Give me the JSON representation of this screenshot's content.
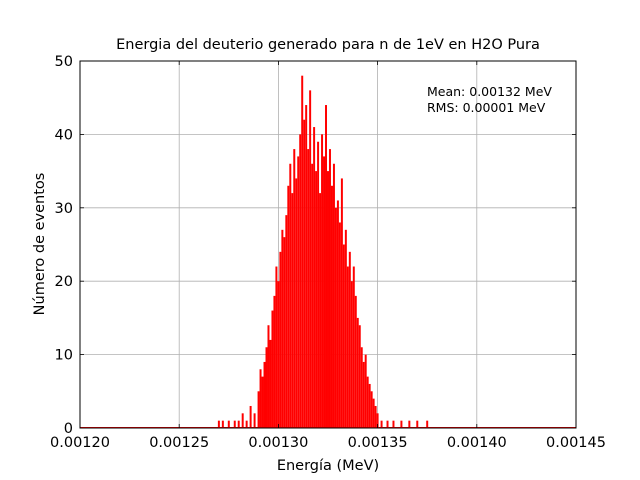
{
  "chart_data": {
    "type": "bar",
    "title": "Energia del deuterio generado para n de 1eV en H2O Pura",
    "xlabel": "Energía (MeV)",
    "ylabel": "Número de eventos",
    "xlim": [
      0.0012,
      0.00145
    ],
    "ylim": [
      0,
      50
    ],
    "grid": true,
    "color": "#ff0000",
    "xticks": [
      "0.00120",
      "0.00125",
      "0.00130",
      "0.00135",
      "0.00140",
      "0.00145"
    ],
    "yticks": [
      "0",
      "10",
      "20",
      "30",
      "40",
      "50"
    ],
    "stats": {
      "mean_label": "Mean: 0.00132 MeV",
      "rms_label": "RMS: 0.00001 MeV"
    },
    "bin_centers_mev": [
      0.00127,
      0.001272,
      0.001275,
      0.001278,
      0.00128,
      0.001282,
      0.001284,
      0.001286,
      0.001288,
      0.00129,
      0.001291,
      0.001292,
      0.001293,
      0.001294,
      0.001295,
      0.001296,
      0.001297,
      0.001298,
      0.001299,
      0.0013,
      0.001301,
      0.001302,
      0.001303,
      0.001304,
      0.001305,
      0.001306,
      0.001307,
      0.001308,
      0.001309,
      0.00131,
      0.001311,
      0.001312,
      0.001313,
      0.001314,
      0.001315,
      0.001316,
      0.001317,
      0.001318,
      0.001319,
      0.00132,
      0.001321,
      0.001322,
      0.001323,
      0.001324,
      0.001325,
      0.001326,
      0.001327,
      0.001328,
      0.001329,
      0.00133,
      0.001331,
      0.001332,
      0.001333,
      0.001334,
      0.001335,
      0.001336,
      0.001337,
      0.001338,
      0.001339,
      0.00134,
      0.001341,
      0.001342,
      0.001343,
      0.001344,
      0.001345,
      0.001346,
      0.001347,
      0.001348,
      0.001349,
      0.00135,
      0.001352,
      0.001355,
      0.001358,
      0.001362,
      0.001366,
      0.00137,
      0.001375
    ],
    "counts": [
      1,
      1,
      1,
      1,
      1,
      2,
      1,
      3,
      2,
      5,
      8,
      7,
      9,
      11,
      14,
      12,
      16,
      18,
      22,
      20,
      24,
      27,
      26,
      29,
      33,
      36,
      32,
      38,
      34,
      37,
      40,
      48,
      42,
      44,
      38,
      46,
      36,
      41,
      35,
      39,
      32,
      40,
      37,
      44,
      35,
      38,
      33,
      36,
      30,
      31,
      28,
      34,
      25,
      27,
      22,
      24,
      20,
      22,
      18,
      15,
      14,
      11,
      9,
      10,
      7,
      6,
      5,
      4,
      3,
      2,
      1,
      1,
      1,
      1,
      1,
      1,
      1
    ]
  }
}
